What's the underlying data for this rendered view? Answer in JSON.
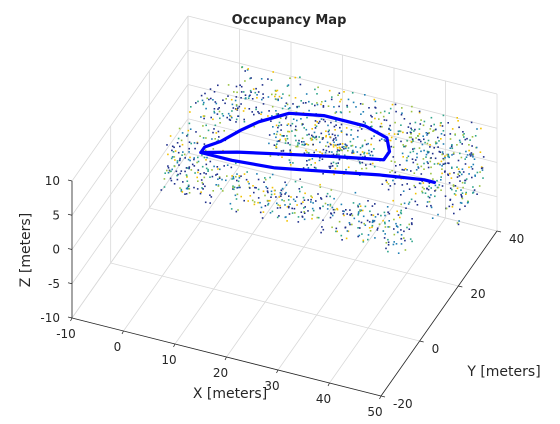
{
  "chart_data": {
    "type": "scatter",
    "title": "Occupancy Map",
    "xlabel": "X [meters]",
    "ylabel": "Y [meters]",
    "zlabel": "Z [meters]",
    "xlim": [
      -10,
      50
    ],
    "ylim": [
      -20,
      40
    ],
    "zlim": [
      -10,
      10
    ],
    "xticks": [
      "-10",
      "0",
      "10",
      "20",
      "30",
      "40",
      "50"
    ],
    "yticks": [
      "-20",
      "0",
      "20",
      "40"
    ],
    "zticks": [
      "-10",
      "-5",
      "0",
      "5",
      "10"
    ],
    "grid": true,
    "trajectory_color": "#0000ff",
    "occupancy_colors": [
      "#1f2f8a",
      "#1f7fb4",
      "#2fa58a",
      "#9ac241",
      "#f2c200"
    ],
    "series": [
      {
        "type": "line",
        "points": [
          [
            0,
            20,
            0
          ],
          [
            6,
            23,
            0
          ],
          [
            14,
            26,
            0
          ],
          [
            22,
            29,
            0
          ],
          [
            28,
            31,
            0
          ],
          [
            31,
            32,
            0
          ],
          [
            31,
            35,
            0
          ],
          [
            29,
            39,
            0
          ],
          [
            24,
            41,
            0
          ],
          [
            16,
            41,
            0
          ],
          [
            10,
            39,
            0
          ],
          [
            6,
            34,
            0
          ],
          [
            4,
            30,
            0
          ],
          [
            2,
            25,
            0
          ],
          [
            0,
            22,
            0
          ],
          [
            0,
            20,
            0
          ],
          [
            6,
            20,
            0
          ],
          [
            14,
            21,
            0
          ],
          [
            20,
            23,
            0
          ],
          [
            26,
            25,
            0
          ],
          [
            32,
            27,
            0
          ],
          [
            36,
            28,
            0
          ],
          [
            40,
            29,
            0
          ],
          [
            42,
            29,
            0
          ]
        ]
      }
    ]
  }
}
